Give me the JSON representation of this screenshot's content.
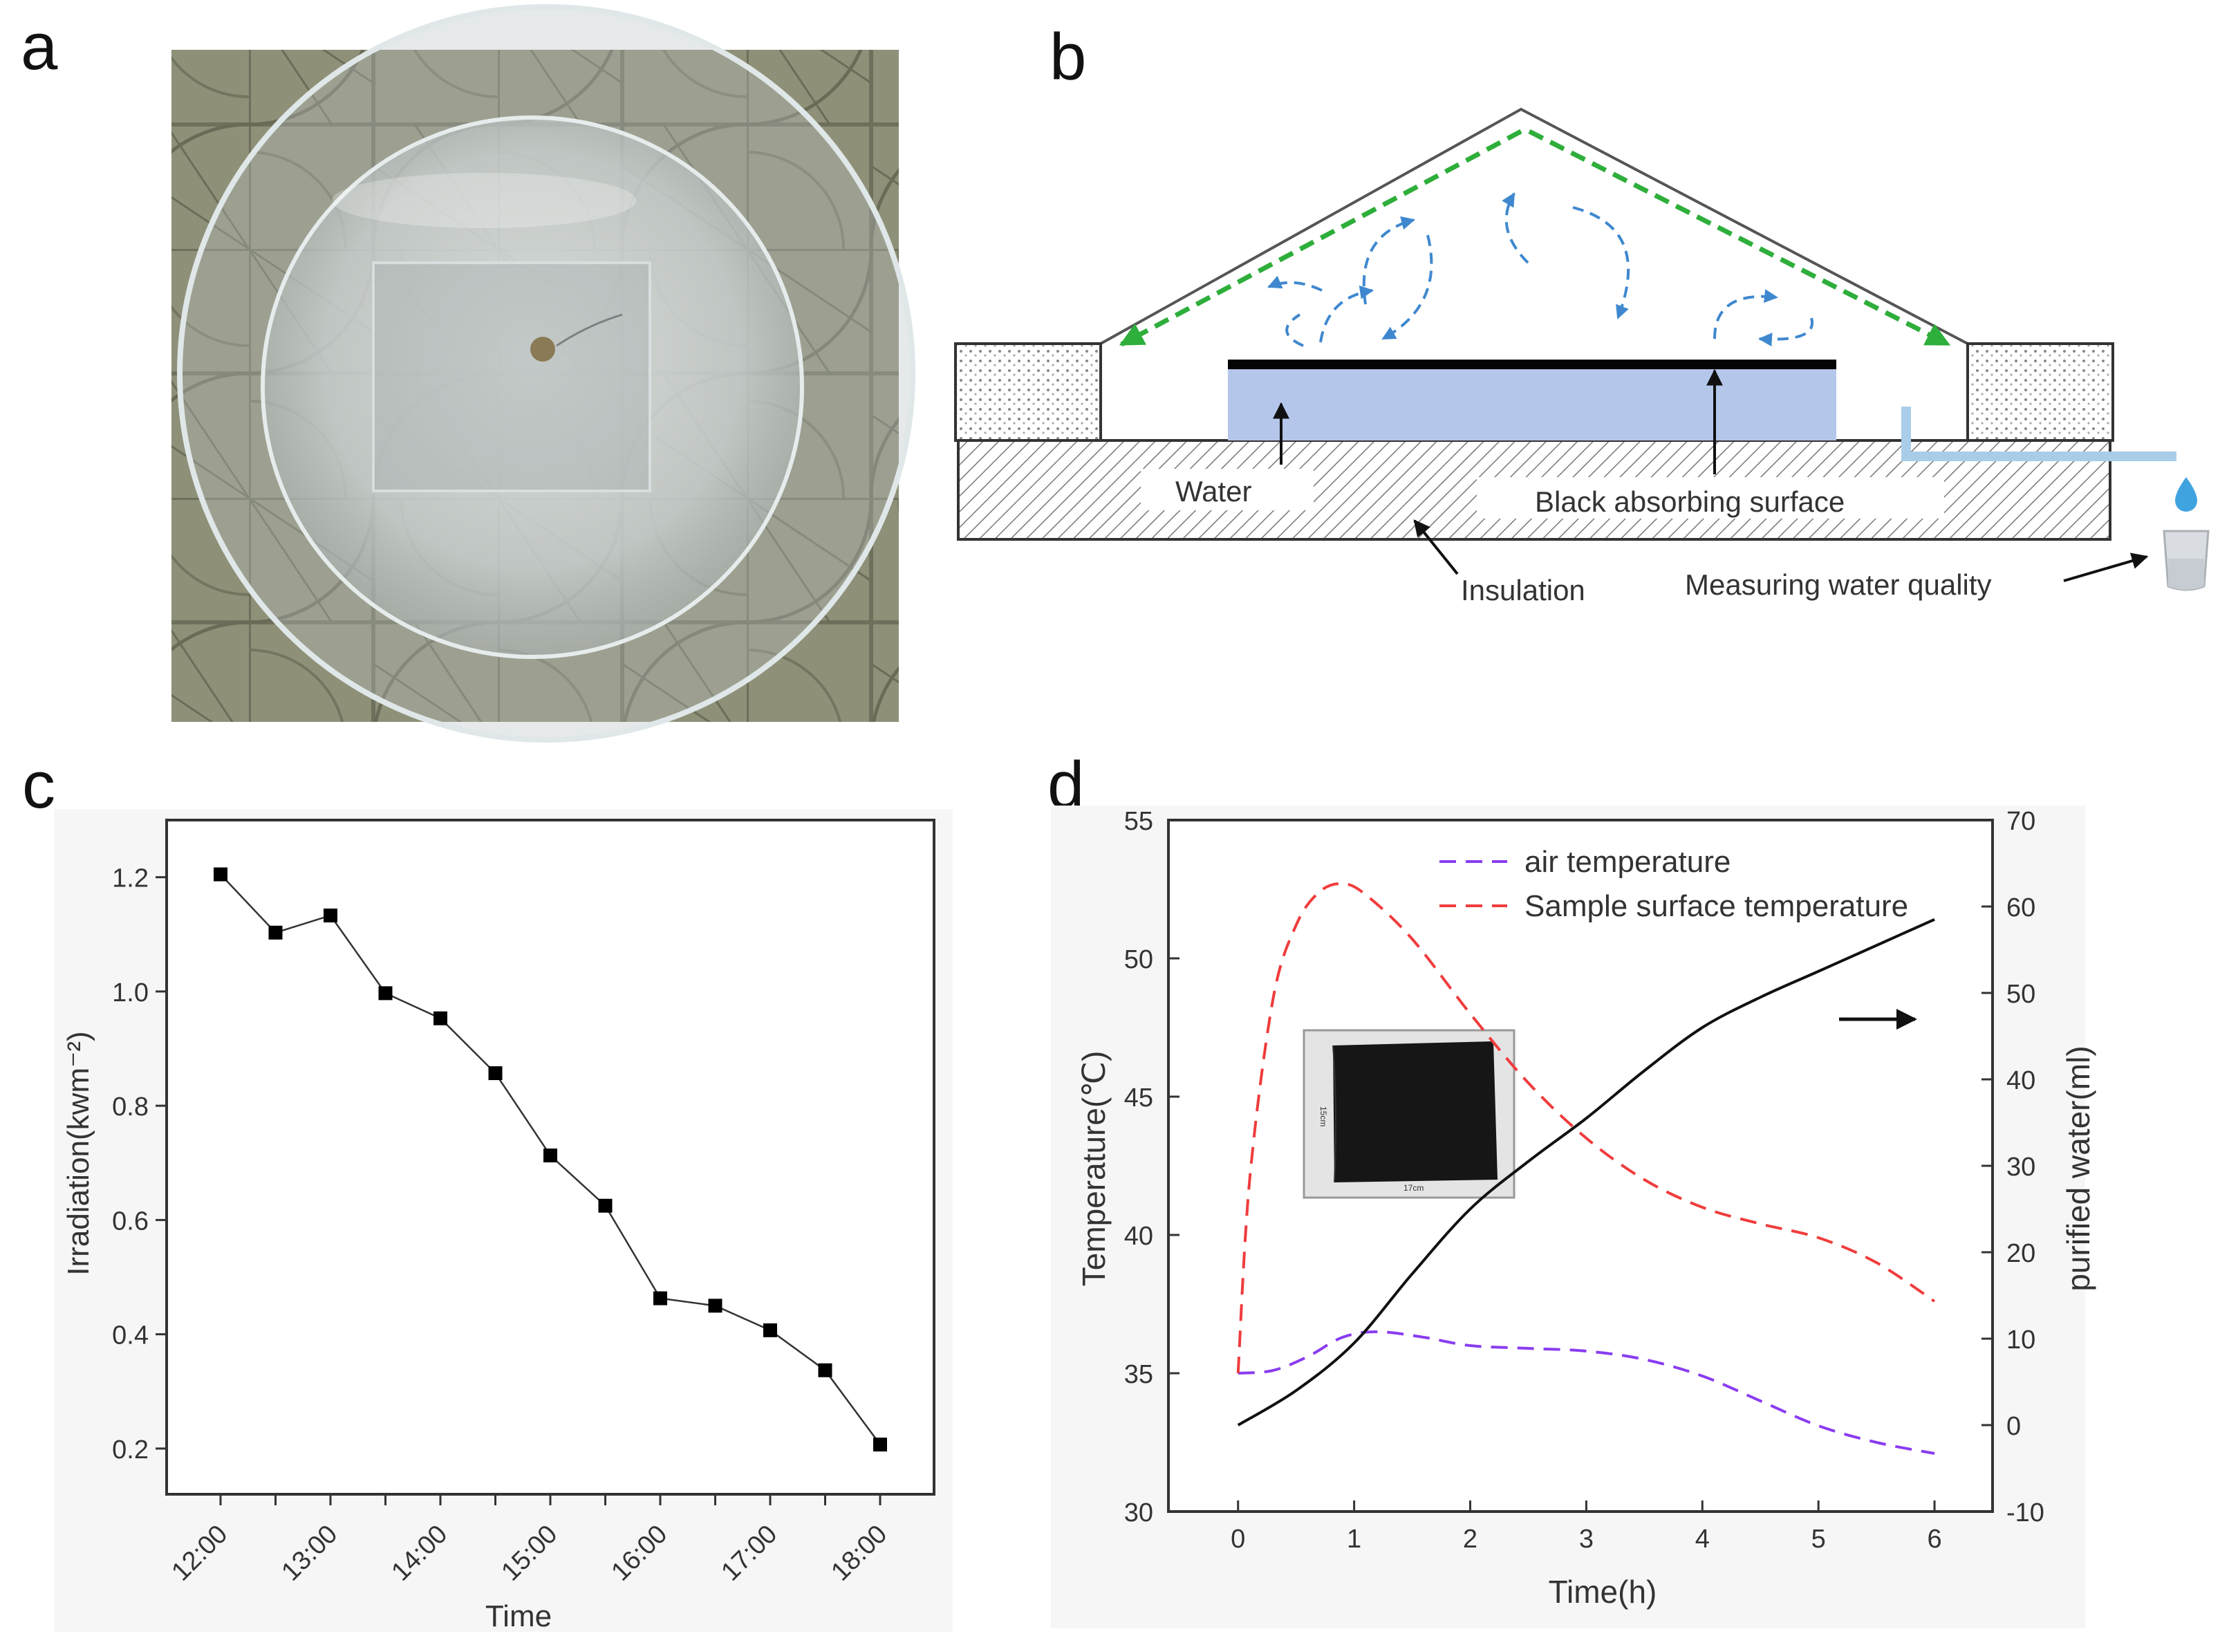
{
  "panels": {
    "a": {
      "letter": "a"
    },
    "b": {
      "letter": "b"
    },
    "c": {
      "letter": "c"
    },
    "d": {
      "letter": "d"
    }
  },
  "diagram": {
    "water_label": "Water",
    "black_surface_label": "Black absorbing surface",
    "insulation_label": "Insulation",
    "measuring_label": "Measuring water quality"
  },
  "inset": {
    "height_label": "15cm",
    "width_label": "17cm"
  },
  "chart_data": [
    {
      "type": "line",
      "panel": "c",
      "title": "",
      "xlabel": "Time",
      "ylabel": "Irradiation(kwm⁻²)",
      "x": [
        "12:00",
        "12:30",
        "13:00",
        "13:30",
        "14:00",
        "14:30",
        "15:00",
        "15:30",
        "16:00",
        "16:30",
        "17:00",
        "17:30",
        "18:00"
      ],
      "x_tick_labels": [
        "12:00",
        "13:00",
        "14:00",
        "15:00",
        "16:00",
        "17:00",
        "18:00"
      ],
      "values": [
        1.205,
        1.103,
        1.133,
        0.997,
        0.953,
        0.857,
        0.713,
        0.625,
        0.463,
        0.45,
        0.407,
        0.337,
        0.207
      ],
      "y_ticks": [
        "0.2",
        "0.4",
        "0.6",
        "0.8",
        "1.0",
        "1.2"
      ],
      "ylim": [
        0.12,
        1.3
      ],
      "marker": "square"
    },
    {
      "type": "line",
      "panel": "d",
      "xlabel": "Time(h)",
      "ylabel": "Temperature(℃)",
      "y2label": "purified water(ml)",
      "xlim": [
        -0.6,
        6.5
      ],
      "ylim": [
        30,
        55
      ],
      "y2lim": [
        -10,
        70
      ],
      "x_ticks": [
        "0",
        "1",
        "2",
        "3",
        "4",
        "5",
        "6"
      ],
      "y_ticks": [
        "30",
        "35",
        "40",
        "45",
        "50",
        "55"
      ],
      "y2_ticks": [
        "-10",
        "0",
        "10",
        "20",
        "30",
        "40",
        "50",
        "60",
        "70"
      ],
      "series": [
        {
          "name": "air temperature",
          "axis": "left",
          "style": "dashed",
          "color": "#8a3cf0",
          "x": [
            0,
            0.3,
            0.6,
            0.9,
            1.2,
            1.6,
            2.0,
            2.5,
            3.0,
            3.5,
            4.0,
            4.5,
            5.0,
            5.5,
            6.0
          ],
          "y": [
            35.0,
            35.1,
            35.6,
            36.3,
            36.5,
            36.3,
            36.0,
            35.9,
            35.8,
            35.5,
            34.9,
            34.0,
            33.1,
            32.5,
            32.1
          ]
        },
        {
          "name": "Sample surface temperature",
          "axis": "left",
          "style": "dashed",
          "color": "#f03c3c",
          "x": [
            0,
            0.1,
            0.3,
            0.5,
            0.7,
            0.9,
            1.1,
            1.5,
            2.0,
            2.5,
            3.0,
            3.5,
            4.0,
            4.5,
            5.0,
            5.5,
            6.0
          ],
          "y": [
            35.0,
            42.0,
            48.5,
            51.2,
            52.4,
            52.7,
            52.3,
            50.7,
            48.0,
            45.5,
            43.5,
            42.0,
            41.0,
            40.4,
            39.9,
            39.0,
            37.6
          ]
        },
        {
          "name": "purified water",
          "axis": "right",
          "style": "solid",
          "color": "#111111",
          "show_in_legend": false,
          "x": [
            0,
            0.5,
            1.0,
            1.5,
            2.0,
            2.5,
            3.0,
            3.5,
            4.0,
            4.5,
            5.0,
            5.5,
            6.0
          ],
          "y": [
            0,
            4,
            9.5,
            17.5,
            25,
            30.5,
            35.5,
            41,
            46,
            49.5,
            52.5,
            55.5,
            58.5
          ]
        }
      ]
    }
  ],
  "colors": {
    "water_fill": "#b4c6ea",
    "flow_arrow": "#3f88cf",
    "radiation_arrow": "#2eae3a",
    "outlet_pipe": "#a9cde8"
  }
}
